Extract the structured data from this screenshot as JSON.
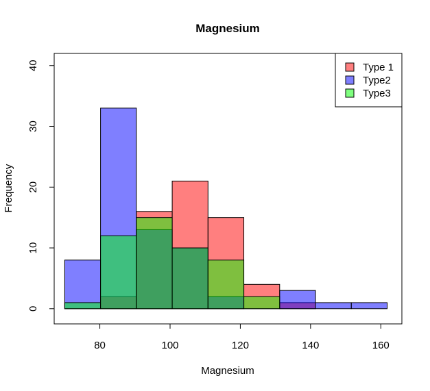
{
  "chart_data": {
    "type": "histogram",
    "title": "Magnesium",
    "xlabel": "Magnesium",
    "ylabel": "Frequency",
    "xlim": [
      67,
      166
    ],
    "ylim": [
      -2.5,
      42
    ],
    "xticks": [
      80,
      100,
      120,
      140,
      160
    ],
    "yticks": [
      0,
      10,
      20,
      30,
      40
    ],
    "bins": [
      [
        70,
        80.2
      ],
      [
        80.2,
        90.4
      ],
      [
        90.4,
        100.6
      ],
      [
        100.6,
        110.8
      ],
      [
        110.8,
        121
      ],
      [
        121,
        131.2
      ],
      [
        131.2,
        141.4
      ],
      [
        141.4,
        151.6
      ],
      [
        151.6,
        161.8
      ]
    ],
    "series": [
      {
        "name": "Type 1",
        "color": "#ff0000",
        "alpha": 0.5,
        "values": [
          0,
          2,
          16,
          21,
          15,
          4,
          1,
          0,
          0
        ]
      },
      {
        "name": "Type2",
        "color": "#0000ff",
        "alpha": 0.5,
        "values": [
          8,
          33,
          13,
          10,
          2,
          0,
          3,
          1,
          1
        ]
      },
      {
        "name": "Type3",
        "color": "#00ff00",
        "alpha": 0.5,
        "values": [
          1,
          12,
          15,
          10,
          8,
          2,
          0,
          0,
          0
        ]
      }
    ],
    "legend_position": "top-right",
    "grid": false
  }
}
